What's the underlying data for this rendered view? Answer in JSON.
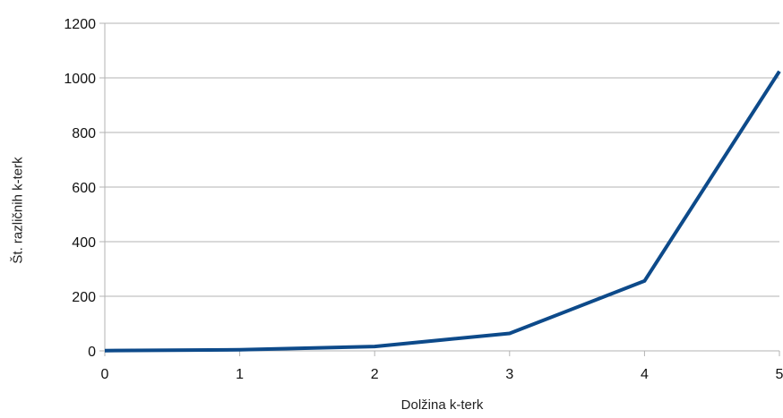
{
  "chart_data": {
    "type": "line",
    "title": "",
    "xlabel": "Dolžina k-terk",
    "ylabel": "Št. različnih k-terk",
    "x": [
      0,
      1,
      2,
      3,
      4,
      5
    ],
    "series": [
      {
        "values": [
          1,
          4,
          16,
          64,
          256,
          1024
        ]
      }
    ],
    "xlim": [
      0,
      5
    ],
    "ylim": [
      0,
      1200
    ],
    "xticks": [
      "0",
      "1",
      "2",
      "3",
      "4",
      "5"
    ],
    "yticks": [
      "0",
      "200",
      "400",
      "600",
      "800",
      "1000",
      "1200"
    ],
    "grid": "horizontal",
    "legend": "none",
    "colors": {
      "line": "#0d4a8a",
      "grid": "#b3b3b3",
      "axis": "#b3b3b3"
    }
  }
}
